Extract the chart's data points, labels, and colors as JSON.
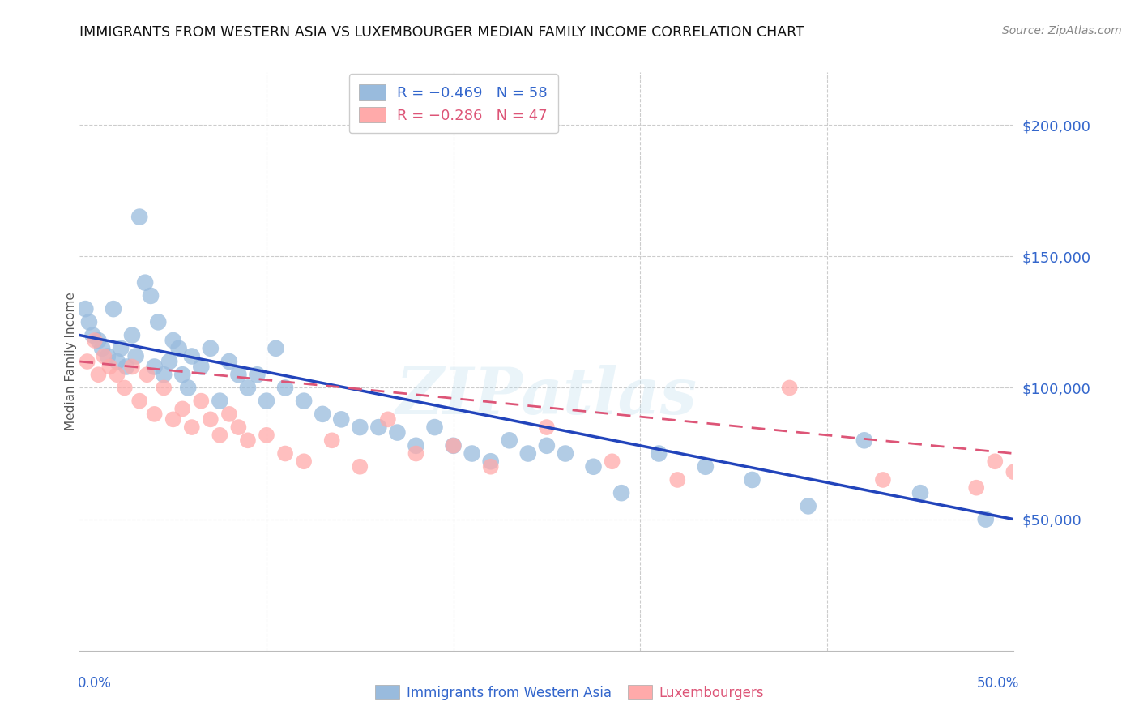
{
  "title": "IMMIGRANTS FROM WESTERN ASIA VS LUXEMBOURGER MEDIAN FAMILY INCOME CORRELATION CHART",
  "source": "Source: ZipAtlas.com",
  "ylabel": "Median Family Income",
  "legend_blue_label": "Immigrants from Western Asia",
  "legend_pink_label": "Luxembourgers",
  "blue_color": "#99BBDD",
  "pink_color": "#FFAAAA",
  "line_blue": "#2244BB",
  "line_pink": "#DD5577",
  "watermark": "ZIPatlas",
  "xlim": [
    0,
    50
  ],
  "ylim": [
    0,
    220000
  ],
  "blue_points_x": [
    0.3,
    0.5,
    0.7,
    1.0,
    1.2,
    1.5,
    1.8,
    2.0,
    2.2,
    2.5,
    2.8,
    3.0,
    3.2,
    3.5,
    3.8,
    4.0,
    4.2,
    4.5,
    4.8,
    5.0,
    5.3,
    5.5,
    5.8,
    6.0,
    6.5,
    7.0,
    7.5,
    8.0,
    8.5,
    9.0,
    9.5,
    10.0,
    10.5,
    11.0,
    12.0,
    13.0,
    14.0,
    15.0,
    16.0,
    17.0,
    18.0,
    19.0,
    20.0,
    21.0,
    22.0,
    23.0,
    24.0,
    25.0,
    26.0,
    27.5,
    29.0,
    31.0,
    33.5,
    36.0,
    39.0,
    42.0,
    45.0,
    48.5
  ],
  "blue_points_y": [
    130000,
    125000,
    120000,
    118000,
    115000,
    112000,
    130000,
    110000,
    115000,
    108000,
    120000,
    112000,
    165000,
    140000,
    135000,
    108000,
    125000,
    105000,
    110000,
    118000,
    115000,
    105000,
    100000,
    112000,
    108000,
    115000,
    95000,
    110000,
    105000,
    100000,
    105000,
    95000,
    115000,
    100000,
    95000,
    90000,
    88000,
    85000,
    85000,
    83000,
    78000,
    85000,
    78000,
    75000,
    72000,
    80000,
    75000,
    78000,
    75000,
    70000,
    60000,
    75000,
    70000,
    65000,
    55000,
    80000,
    60000,
    50000
  ],
  "pink_points_x": [
    0.4,
    0.8,
    1.0,
    1.3,
    1.6,
    2.0,
    2.4,
    2.8,
    3.2,
    3.6,
    4.0,
    4.5,
    5.0,
    5.5,
    6.0,
    6.5,
    7.0,
    7.5,
    8.0,
    8.5,
    9.0,
    10.0,
    11.0,
    12.0,
    13.5,
    15.0,
    16.5,
    18.0,
    20.0,
    22.0,
    25.0,
    28.5,
    32.0,
    38.0,
    43.0,
    48.0,
    49.0,
    50.0
  ],
  "pink_points_y": [
    110000,
    118000,
    105000,
    112000,
    108000,
    105000,
    100000,
    108000,
    95000,
    105000,
    90000,
    100000,
    88000,
    92000,
    85000,
    95000,
    88000,
    82000,
    90000,
    85000,
    80000,
    82000,
    75000,
    72000,
    80000,
    70000,
    88000,
    75000,
    78000,
    70000,
    85000,
    72000,
    65000,
    100000,
    65000,
    62000,
    72000,
    68000
  ]
}
